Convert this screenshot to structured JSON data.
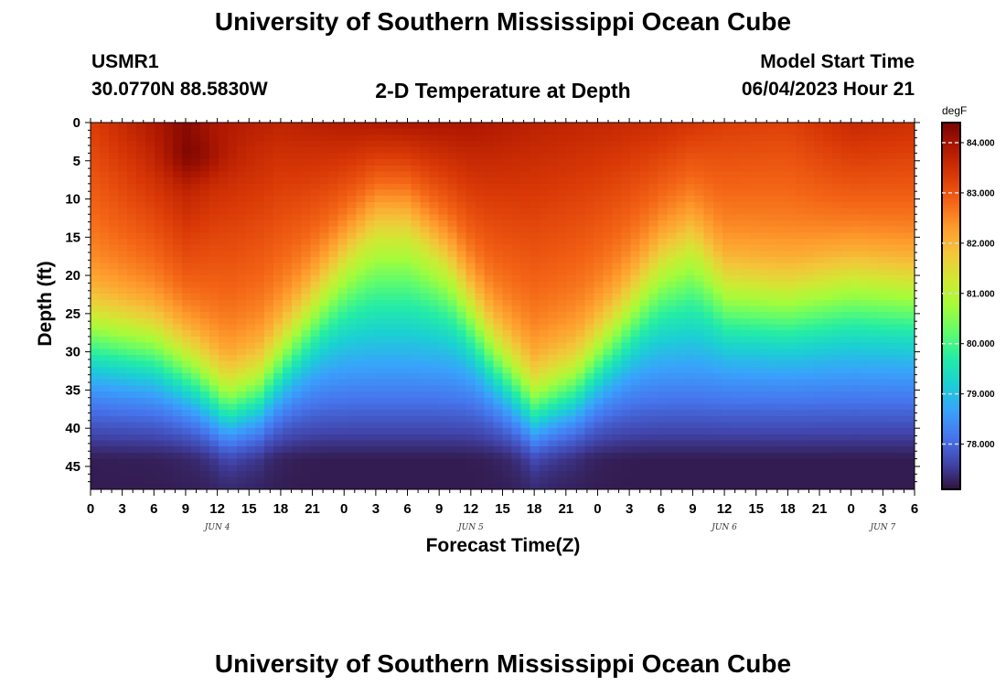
{
  "header": {
    "title": "University of Southern Mississippi Ocean Cube",
    "station_id": "USMR1",
    "station_coords": "30.0770N  88.5830W",
    "model_start_label": "Model Start Time",
    "model_start_value": "06/04/2023 Hour 21",
    "footer_title": "University of Southern Mississippi Ocean Cube"
  },
  "chart_data": {
    "type": "heatmap",
    "title": "2-D Temperature at Depth",
    "xlabel": "Forecast Time(Z)",
    "ylabel": "Depth (ft)",
    "colorbar_unit": "degF",
    "x_tick_labels": [
      "0",
      "3",
      "6",
      "9",
      "12",
      "15",
      "18",
      "21",
      "0",
      "3",
      "6",
      "9",
      "12",
      "15",
      "18",
      "21",
      "0",
      "3",
      "6",
      "9",
      "12",
      "15",
      "18",
      "21",
      "0",
      "3",
      "6"
    ],
    "date_labels": [
      {
        "label": "JUN 4",
        "tick_index": 4
      },
      {
        "label": "JUN 5",
        "tick_index": 12
      },
      {
        "label": "JUN 6",
        "tick_index": 20
      },
      {
        "label": "JUN 7",
        "tick_index": 25
      }
    ],
    "x_range_hours": [
      0,
      78
    ],
    "y_ticks": [
      0,
      5,
      10,
      15,
      20,
      25,
      30,
      35,
      40,
      45
    ],
    "y_range_ft": [
      0,
      48
    ],
    "y_inverted": true,
    "colorbar_ticks": [
      "78.000",
      "79.000",
      "80.000",
      "81.000",
      "82.000",
      "83.000",
      "84.000"
    ],
    "color_range_degF": [
      77.1,
      84.4
    ],
    "colormap": [
      "#30123b",
      "#4145ab",
      "#4675ed",
      "#39a2fc",
      "#1bcfd4",
      "#24eca6",
      "#61fc6c",
      "#a4fc3b",
      "#d1e834",
      "#f3c63a",
      "#fe9b2d",
      "#f36315",
      "#d93806",
      "#b11901",
      "#7a0402"
    ],
    "surface_temp_degF": [
      [
        0,
        83.3
      ],
      [
        6,
        83.9
      ],
      [
        9,
        84.25
      ],
      [
        12,
        83.9
      ],
      [
        18,
        83.7
      ],
      [
        24,
        83.85
      ],
      [
        30,
        83.95
      ],
      [
        36,
        83.95
      ],
      [
        42,
        83.75
      ],
      [
        48,
        83.65
      ],
      [
        54,
        83.55
      ],
      [
        60,
        83.3
      ],
      [
        66,
        83.25
      ],
      [
        72,
        83.6
      ],
      [
        78,
        83.5
      ]
    ],
    "thermocline_depth_ft": [
      [
        0,
        27
      ],
      [
        6,
        29
      ],
      [
        10,
        33
      ],
      [
        13,
        37
      ],
      [
        16,
        35
      ],
      [
        20,
        27
      ],
      [
        24,
        19
      ],
      [
        27,
        14
      ],
      [
        30,
        14
      ],
      [
        34,
        20
      ],
      [
        38,
        30
      ],
      [
        42,
        37
      ],
      [
        46,
        34
      ],
      [
        50,
        27
      ],
      [
        54,
        19
      ],
      [
        57,
        16
      ],
      [
        60,
        22
      ],
      [
        66,
        23
      ],
      [
        72,
        21
      ],
      [
        78,
        22
      ]
    ],
    "bottom_temp_degF": 77.2
  }
}
